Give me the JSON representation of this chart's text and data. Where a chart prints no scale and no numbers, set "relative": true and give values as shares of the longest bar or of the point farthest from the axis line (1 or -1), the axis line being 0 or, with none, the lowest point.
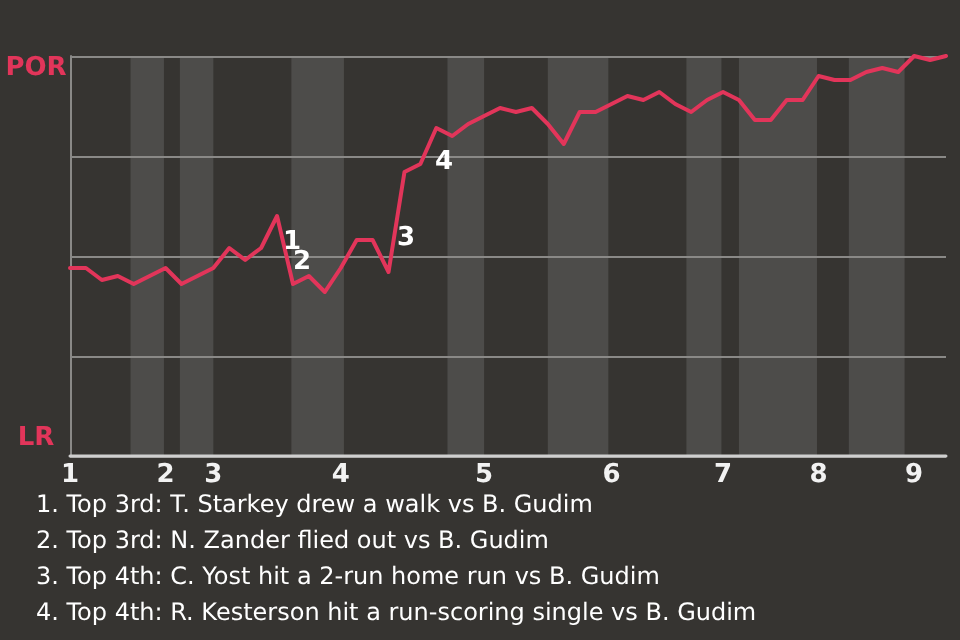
{
  "chart_data": {
    "type": "line",
    "categories": [
      "1",
      null,
      null,
      null,
      null,
      null,
      "2",
      null,
      null,
      "3",
      null,
      null,
      null,
      null,
      null,
      null,
      null,
      "4",
      null,
      null,
      null,
      null,
      null,
      null,
      null,
      null,
      "5",
      null,
      null,
      null,
      null,
      null,
      null,
      null,
      "6",
      null,
      null,
      null,
      null,
      null,
      null,
      "7",
      null,
      null,
      null,
      null,
      null,
      "8",
      null,
      null,
      null,
      null,
      null,
      "9",
      null,
      null
    ],
    "series": [
      {
        "color": "#e2355a",
        "values": [
          0.47,
          0.47,
          0.44,
          0.45,
          0.43,
          0.45,
          0.47,
          0.43,
          0.45,
          0.47,
          0.52,
          0.49,
          0.52,
          0.6,
          0.43,
          0.45,
          0.41,
          0.47,
          0.54,
          0.54,
          0.46,
          0.71,
          0.73,
          0.82,
          0.8,
          0.83,
          0.85,
          0.87,
          0.86,
          0.87,
          0.83,
          0.78,
          0.86,
          0.86,
          0.88,
          0.9,
          0.89,
          0.91,
          0.88,
          0.86,
          0.89,
          0.91,
          0.89,
          0.84,
          0.84,
          0.89,
          0.89,
          0.95,
          0.94,
          0.94,
          0.96,
          0.97,
          0.96,
          1,
          0.99,
          1
        ]
      }
    ],
    "relative": true,
    "grid": "y",
    "marker": "none",
    "line_style": "solid",
    "annotations": [
      "POR",
      "LR",
      "1",
      "2",
      "3",
      "4",
      "1. Top 3rd: T. Starkey drew a walk vs B. Gudim",
      "2. Top 3rd: N. Zander flied out vs B. Gudim",
      "3. Top 4th: C. Yost hit a 2-run home run vs B. Gudim",
      "4. Top 4th: R. Kesterson hit a run-scoring single vs B. Gudim"
    ]
  }
}
